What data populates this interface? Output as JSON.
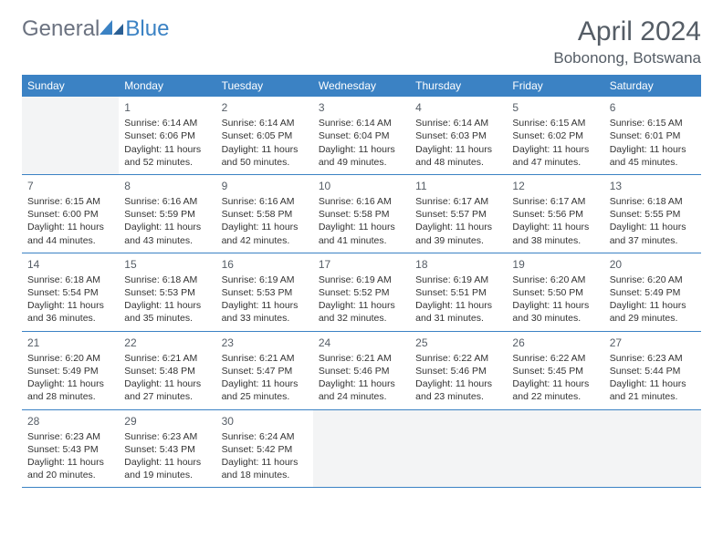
{
  "logo": {
    "text1": "General",
    "text2": "Blue"
  },
  "title": "April 2024",
  "location": "Bobonong, Botswana",
  "weekdays": [
    "Sunday",
    "Monday",
    "Tuesday",
    "Wednesday",
    "Thursday",
    "Friday",
    "Saturday"
  ],
  "colors": {
    "header_bg": "#3b82c4",
    "text": "#333333",
    "muted": "#555d66",
    "empty_bg": "#f3f4f5"
  },
  "weeks": [
    [
      {
        "empty": true
      },
      {
        "n": "1",
        "sr": "6:14 AM",
        "ss": "6:06 PM",
        "dl": "11 hours and 52 minutes."
      },
      {
        "n": "2",
        "sr": "6:14 AM",
        "ss": "6:05 PM",
        "dl": "11 hours and 50 minutes."
      },
      {
        "n": "3",
        "sr": "6:14 AM",
        "ss": "6:04 PM",
        "dl": "11 hours and 49 minutes."
      },
      {
        "n": "4",
        "sr": "6:14 AM",
        "ss": "6:03 PM",
        "dl": "11 hours and 48 minutes."
      },
      {
        "n": "5",
        "sr": "6:15 AM",
        "ss": "6:02 PM",
        "dl": "11 hours and 47 minutes."
      },
      {
        "n": "6",
        "sr": "6:15 AM",
        "ss": "6:01 PM",
        "dl": "11 hours and 45 minutes."
      }
    ],
    [
      {
        "n": "7",
        "sr": "6:15 AM",
        "ss": "6:00 PM",
        "dl": "11 hours and 44 minutes."
      },
      {
        "n": "8",
        "sr": "6:16 AM",
        "ss": "5:59 PM",
        "dl": "11 hours and 43 minutes."
      },
      {
        "n": "9",
        "sr": "6:16 AM",
        "ss": "5:58 PM",
        "dl": "11 hours and 42 minutes."
      },
      {
        "n": "10",
        "sr": "6:16 AM",
        "ss": "5:58 PM",
        "dl": "11 hours and 41 minutes."
      },
      {
        "n": "11",
        "sr": "6:17 AM",
        "ss": "5:57 PM",
        "dl": "11 hours and 39 minutes."
      },
      {
        "n": "12",
        "sr": "6:17 AM",
        "ss": "5:56 PM",
        "dl": "11 hours and 38 minutes."
      },
      {
        "n": "13",
        "sr": "6:18 AM",
        "ss": "5:55 PM",
        "dl": "11 hours and 37 minutes."
      }
    ],
    [
      {
        "n": "14",
        "sr": "6:18 AM",
        "ss": "5:54 PM",
        "dl": "11 hours and 36 minutes."
      },
      {
        "n": "15",
        "sr": "6:18 AM",
        "ss": "5:53 PM",
        "dl": "11 hours and 35 minutes."
      },
      {
        "n": "16",
        "sr": "6:19 AM",
        "ss": "5:53 PM",
        "dl": "11 hours and 33 minutes."
      },
      {
        "n": "17",
        "sr": "6:19 AM",
        "ss": "5:52 PM",
        "dl": "11 hours and 32 minutes."
      },
      {
        "n": "18",
        "sr": "6:19 AM",
        "ss": "5:51 PM",
        "dl": "11 hours and 31 minutes."
      },
      {
        "n": "19",
        "sr": "6:20 AM",
        "ss": "5:50 PM",
        "dl": "11 hours and 30 minutes."
      },
      {
        "n": "20",
        "sr": "6:20 AM",
        "ss": "5:49 PM",
        "dl": "11 hours and 29 minutes."
      }
    ],
    [
      {
        "n": "21",
        "sr": "6:20 AM",
        "ss": "5:49 PM",
        "dl": "11 hours and 28 minutes."
      },
      {
        "n": "22",
        "sr": "6:21 AM",
        "ss": "5:48 PM",
        "dl": "11 hours and 27 minutes."
      },
      {
        "n": "23",
        "sr": "6:21 AM",
        "ss": "5:47 PM",
        "dl": "11 hours and 25 minutes."
      },
      {
        "n": "24",
        "sr": "6:21 AM",
        "ss": "5:46 PM",
        "dl": "11 hours and 24 minutes."
      },
      {
        "n": "25",
        "sr": "6:22 AM",
        "ss": "5:46 PM",
        "dl": "11 hours and 23 minutes."
      },
      {
        "n": "26",
        "sr": "6:22 AM",
        "ss": "5:45 PM",
        "dl": "11 hours and 22 minutes."
      },
      {
        "n": "27",
        "sr": "6:23 AM",
        "ss": "5:44 PM",
        "dl": "11 hours and 21 minutes."
      }
    ],
    [
      {
        "n": "28",
        "sr": "6:23 AM",
        "ss": "5:43 PM",
        "dl": "11 hours and 20 minutes."
      },
      {
        "n": "29",
        "sr": "6:23 AM",
        "ss": "5:43 PM",
        "dl": "11 hours and 19 minutes."
      },
      {
        "n": "30",
        "sr": "6:24 AM",
        "ss": "5:42 PM",
        "dl": "11 hours and 18 minutes."
      },
      {
        "empty": true
      },
      {
        "empty": true
      },
      {
        "empty": true
      },
      {
        "empty": true
      }
    ]
  ],
  "labels": {
    "sunrise": "Sunrise:",
    "sunset": "Sunset:",
    "daylight": "Daylight:"
  }
}
